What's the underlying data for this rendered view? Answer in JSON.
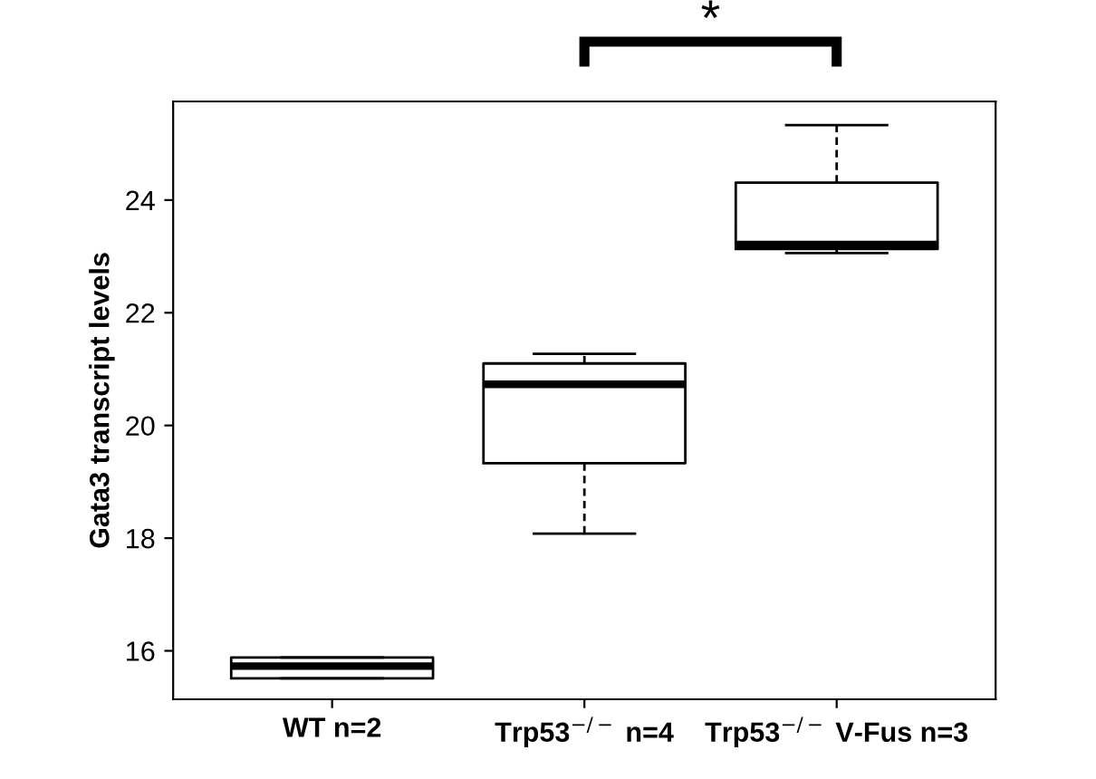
{
  "chart_data": {
    "type": "box",
    "ylabel": "Gata3 transcript levels",
    "categories": [
      "WT n=2",
      "Trp53$^{−/−}$ n=4",
      "Trp53$^{−/−}$ V-Fus n=3"
    ],
    "boxes": [
      {
        "low": 15.51,
        "q1": 15.51,
        "median": 15.73,
        "q3": 15.88,
        "high": 15.88
      },
      {
        "low": 18.08,
        "q1": 19.33,
        "median": 20.73,
        "q3": 21.1,
        "high": 21.27
      },
      {
        "low": 23.06,
        "q1": 23.13,
        "median": 23.21,
        "q3": 24.31,
        "high": 25.33
      }
    ],
    "ylim": [
      15.14,
      25.75
    ],
    "yticks": [
      16,
      18,
      20,
      22,
      24
    ],
    "grid": false,
    "annotations": [
      "*"
    ]
  }
}
